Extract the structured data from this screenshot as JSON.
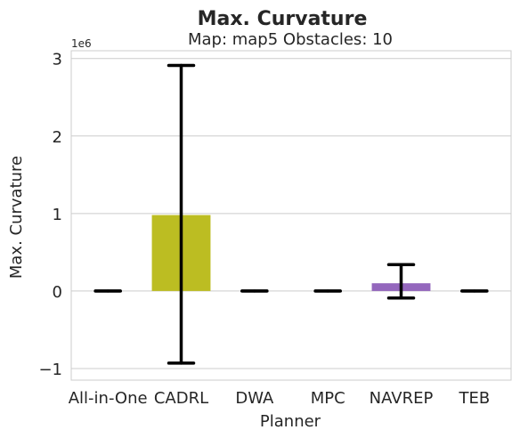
{
  "chart_data": {
    "type": "bar",
    "title": "Max. Curvature",
    "subtitle": "Map: map5 Obstacles: 10",
    "xlabel": "Planner",
    "ylabel": "Max. Curvature",
    "y_offset_label": "1e6",
    "ylim": [
      -1.15,
      3.1
    ],
    "yticks": [
      -1,
      0,
      1,
      2,
      3
    ],
    "ytick_labels": [
      "−1",
      "0",
      "1",
      "2",
      "3"
    ],
    "grid": true,
    "categories": [
      "All-in-One",
      "CADRL",
      "DWA",
      "MPC",
      "NAVREP",
      "TEB"
    ],
    "values": [
      0.0,
      0.98,
      0.0,
      0.0,
      0.1,
      0.0
    ],
    "errors_low": [
      0.0,
      -0.93,
      0.0,
      0.0,
      -0.09,
      0.0
    ],
    "errors_high": [
      0.0,
      2.91,
      0.0,
      0.0,
      0.34,
      0.0
    ],
    "colors": [
      "#4c72b0",
      "#bcbd22",
      "#2ca02c",
      "#d62728",
      "#9467bd",
      "#8c564b"
    ]
  }
}
